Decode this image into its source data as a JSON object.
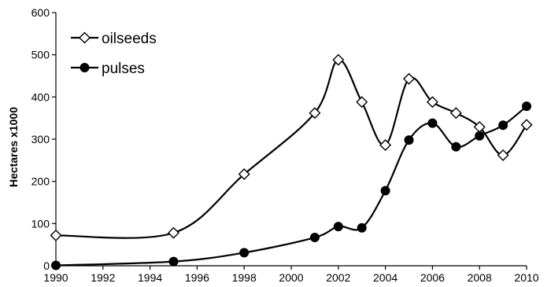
{
  "chart_data": {
    "type": "line",
    "ylabel": "Hectares x1000",
    "xlim": [
      1990,
      2010
    ],
    "ylim": [
      0,
      600
    ],
    "xticks": [
      "1990",
      "1992",
      "1994",
      "1996",
      "1998",
      "2000",
      "2002",
      "2004",
      "2006",
      "2008",
      "2010"
    ],
    "yticks": [
      "0",
      "100",
      "200",
      "300",
      "400",
      "500",
      "600"
    ],
    "grid": false,
    "legend_position": "top-left",
    "series": [
      {
        "name": "oilseeds",
        "marker": "open-diamond",
        "color": "#000000",
        "x": [
          1990,
          1995,
          1998,
          2001,
          2002,
          2003,
          2004,
          2005,
          2006,
          2007,
          2008,
          2009,
          2010
        ],
        "y": [
          72,
          78,
          217,
          362,
          488,
          388,
          286,
          443,
          388,
          362,
          329,
          262,
          334
        ]
      },
      {
        "name": "pulses",
        "marker": "filled-circle",
        "color": "#000000",
        "x": [
          1990,
          1995,
          1998,
          2001,
          2002,
          2003,
          2004,
          2005,
          2006,
          2007,
          2008,
          2009,
          2010
        ],
        "y": [
          1,
          10,
          31,
          67,
          93,
          90,
          178,
          298,
          338,
          282,
          308,
          333,
          378
        ]
      }
    ]
  }
}
